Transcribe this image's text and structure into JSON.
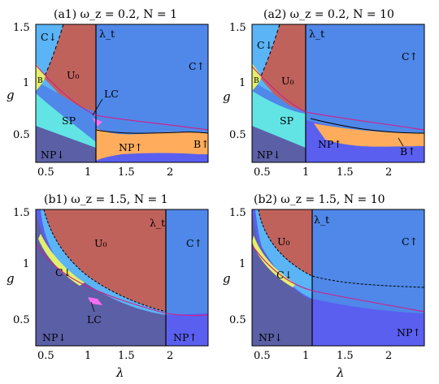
{
  "colors": {
    "U0": "#c0625c",
    "C_up": "#4f88e8",
    "C_down": "#5ab4f6",
    "SP": "#62e4e4",
    "NP_down": "#5b5fa6",
    "NP_up": "#5a5ff0",
    "B": "#ffad5c",
    "B_small": "#e2f06c",
    "LC": "#f36ff0",
    "boundary": "#000000",
    "crossing": "#d11f8a"
  },
  "axes": {
    "xlabel": "λ",
    "ylabel": "g",
    "yticks_top": [
      "1.5",
      "1",
      "0.5"
    ],
    "yticks_bottom": [
      "1.5",
      "1",
      "0.5"
    ],
    "xticks": [
      "0.5",
      "1",
      "1.5",
      "2"
    ],
    "xticks_right": [
      "0.5",
      "1",
      "1.5",
      "2"
    ]
  },
  "panels": {
    "a1": {
      "title": "(a1) ω_z = 0.2, N = 1",
      "labels": {
        "C_down": "C↓",
        "U0": "U₀",
        "lambda_t": "λ_t",
        "C_up": "C↑",
        "B_small": "B",
        "LC": "LC",
        "SP": "SP",
        "NP_up": "NP↑",
        "B_up": "B↑",
        "NP_down": "NP↓"
      }
    },
    "a2": {
      "title": "(a2) ω_z = 0.2, N = 10",
      "labels": {
        "C_down": "C↓",
        "U0": "U₀",
        "lambda_t": "λ_t",
        "C_up": "C↑",
        "B_small": "B",
        "SP": "SP",
        "NP_up": "NP↑",
        "B_up": "B↑",
        "NP_down": "NP↓"
      }
    },
    "b1": {
      "title": "(b1) ω_z = 1.5, N = 1",
      "labels": {
        "U0": "U₀",
        "lambda_t": "λ_t",
        "C_up": "C↑",
        "C_down": "C↓",
        "LC": "LC",
        "NP_down": "NP↓",
        "NP_up": "NP↑"
      }
    },
    "b2": {
      "title": "(b2) ω_z = 1.5, N = 10",
      "labels": {
        "U0": "U₀",
        "lambda_t": "λ_t",
        "C_up": "C↑",
        "C_down": "C↓",
        "NP_down": "NP↓",
        "NP_up": "NP↑"
      }
    }
  }
}
